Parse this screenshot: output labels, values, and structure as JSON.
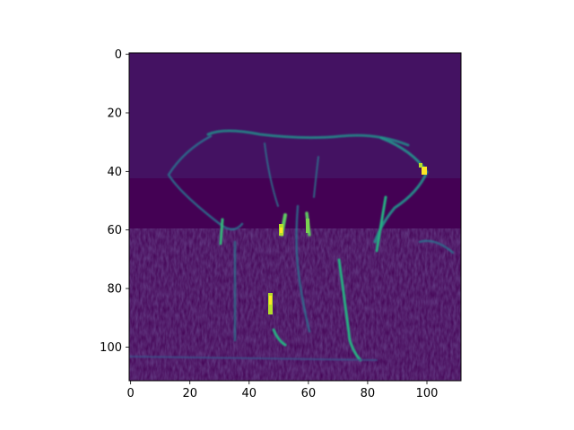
{
  "chart_data": {
    "type": "heatmap",
    "title": "",
    "xlabel": "",
    "ylabel": "",
    "colormap": "viridis",
    "shape": [
      112,
      112
    ],
    "xlim": [
      -0.5,
      111.5
    ],
    "ylim": [
      111.5,
      -0.5
    ],
    "x_ticks": [
      0,
      20,
      40,
      60,
      80,
      100
    ],
    "y_ticks": [
      0,
      20,
      40,
      60,
      80,
      100
    ],
    "x_tick_labels": [
      "0",
      "20",
      "40",
      "60",
      "80",
      "100"
    ],
    "y_tick_labels": [
      "0",
      "20",
      "40",
      "60",
      "80",
      "100"
    ],
    "colors": {
      "low": "#440154",
      "mid": "#21918c",
      "high": "#fde725"
    }
  }
}
